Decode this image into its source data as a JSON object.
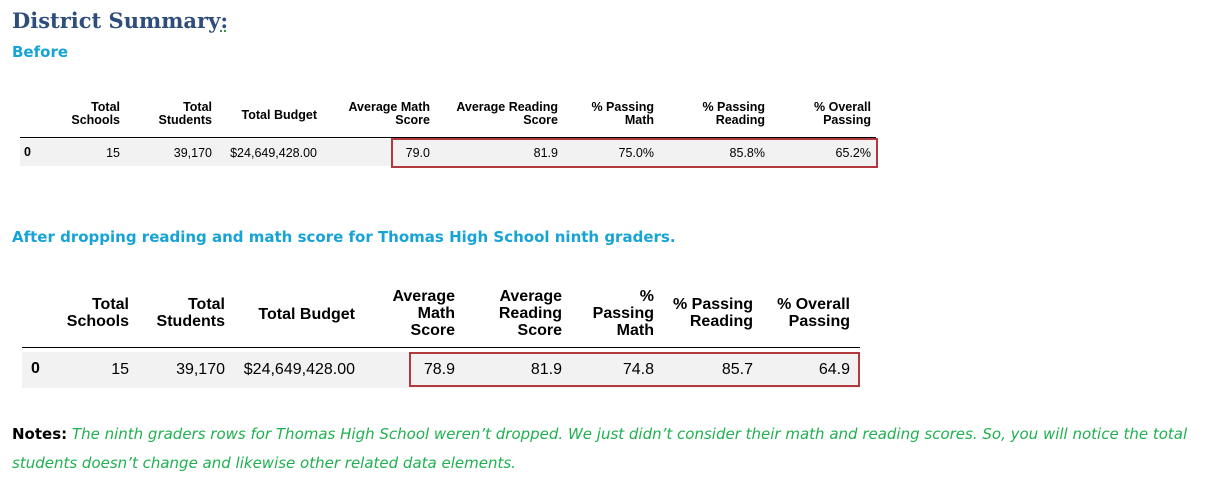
{
  "title": "District Summary",
  "title_suffix": ":",
  "before_label": "Before",
  "after_label": "After dropping reading and math score for Thomas High School ninth graders.",
  "before_table": {
    "headers": [
      "Total Schools",
      "Total Students",
      "Total Budget",
      "Average Math Score",
      "Average Reading Score",
      "% Passing Math",
      "% Passing Reading",
      "% Overall Passing"
    ],
    "row": {
      "index": "0",
      "cells": [
        "15",
        "39,170",
        "$24,649,428.00",
        "79.0",
        "81.9",
        "75.0%",
        "85.8%",
        "65.2%"
      ]
    }
  },
  "after_table": {
    "headers": [
      "Total Schools",
      "Total Students",
      "Total Budget",
      "Average Math Score",
      "Average Reading Score",
      "% Passing Math",
      "% Passing Reading",
      "% Overall Passing"
    ],
    "row": {
      "index": "0",
      "cells": [
        "15",
        "39,170",
        "$24,649,428.00",
        "78.9",
        "81.9",
        "74.8",
        "85.7",
        "64.9"
      ]
    }
  },
  "notes": {
    "label": "Notes:",
    "text": "The ninth graders rows for Thomas High School weren’t dropped. We just didn’t consider their math and reading scores. So, you will notice the total students doesn’t change and likewise other related data elements."
  },
  "colors": {
    "title": "#2e4d7b",
    "subheading": "#16a3d6",
    "notes_text": "#20b050",
    "highlight": "#b23a3e"
  }
}
